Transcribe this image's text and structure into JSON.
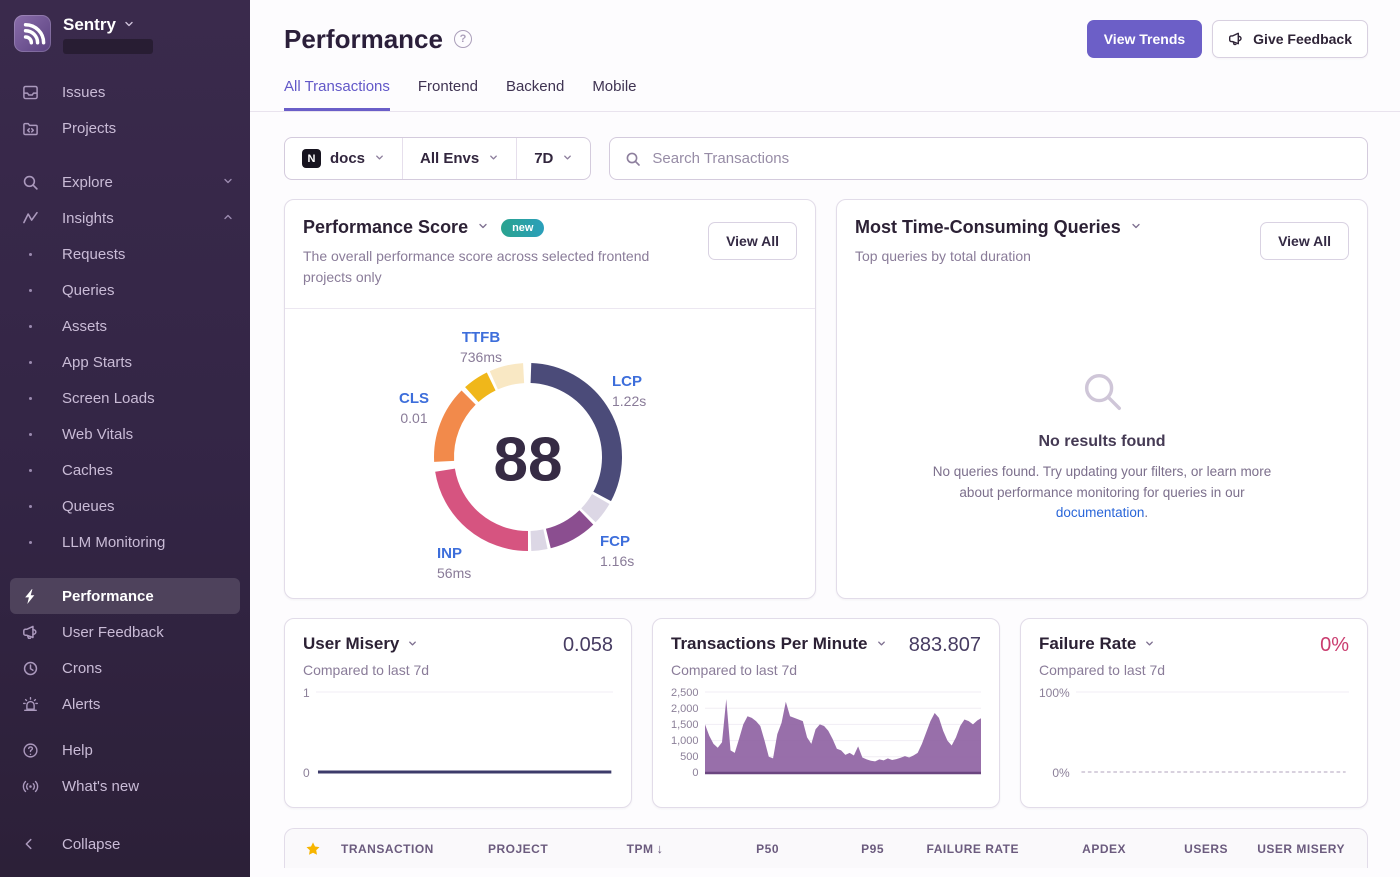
{
  "sidebar": {
    "brand": {
      "name": "Sentry"
    },
    "items": [
      {
        "label": "Issues",
        "icon": "issues"
      },
      {
        "label": "Projects",
        "icon": "projects"
      },
      {
        "label": "Explore",
        "icon": "explore",
        "chevron": "down",
        "gap": true
      },
      {
        "label": "Insights",
        "icon": "insights",
        "chevron": "up"
      },
      {
        "label": "Requests",
        "sub": true
      },
      {
        "label": "Queries",
        "sub": true
      },
      {
        "label": "Assets",
        "sub": true
      },
      {
        "label": "App Starts",
        "sub": true
      },
      {
        "label": "Screen Loads",
        "sub": true
      },
      {
        "label": "Web Vitals",
        "sub": true
      },
      {
        "label": "Caches",
        "sub": true
      },
      {
        "label": "Queues",
        "sub": true
      },
      {
        "label": "LLM Monitoring",
        "sub": true
      },
      {
        "label": "Performance",
        "icon": "performance",
        "active": true,
        "gap": true
      },
      {
        "label": "User Feedback",
        "icon": "feedback"
      },
      {
        "label": "Crons",
        "icon": "crons"
      },
      {
        "label": "Alerts",
        "icon": "alerts"
      },
      {
        "label": "Help",
        "icon": "help",
        "smallgap": true
      },
      {
        "label": "What's new",
        "icon": "broadcast"
      }
    ],
    "collapse_label": "Collapse"
  },
  "header": {
    "title": "Performance",
    "buttons": {
      "view_trends": "View Trends",
      "give_feedback": "Give Feedback"
    }
  },
  "tabs": [
    {
      "label": "All Transactions",
      "active": true
    },
    {
      "label": "Frontend"
    },
    {
      "label": "Backend"
    },
    {
      "label": "Mobile"
    }
  ],
  "filters": {
    "project": "docs",
    "project_platform": "N",
    "environment": "All Envs",
    "date_range": "7D",
    "search_placeholder": "Search Transactions"
  },
  "cards": {
    "performance_score": {
      "title": "Performance Score",
      "badge": "new",
      "description": "The overall performance score across selected frontend projects only",
      "view_all": "View All"
    },
    "queries": {
      "title": "Most Time-Consuming Queries",
      "description": "Top queries by total duration",
      "view_all": "View All",
      "empty": {
        "heading": "No results found",
        "body_before": "No queries found. Try updating your filters, or learn more about performance monitoring for queries in our ",
        "link": "documentation",
        "body_after": "."
      }
    },
    "user_misery": {
      "title": "User Misery",
      "subtitle": "Compared to last 7d",
      "value": "0.058"
    },
    "tpm": {
      "title": "Transactions Per Minute",
      "subtitle": "Compared to last 7d",
      "value": "883.807"
    },
    "failure_rate": {
      "title": "Failure Rate",
      "subtitle": "Compared to last 7d",
      "value": "0%"
    }
  },
  "table": {
    "columns": [
      "TRANSACTION",
      "PROJECT",
      "TPM",
      "P50",
      "P95",
      "FAILURE RATE",
      "APDEX",
      "USERS",
      "USER MISERY"
    ],
    "sort": {
      "column": "TPM",
      "indicator": "↓"
    }
  },
  "chart_data": [
    {
      "type": "donut",
      "title": "Performance Score",
      "score": 88,
      "segments": [
        {
          "metric": "LCP",
          "start": 2,
          "end": 118,
          "color": "#4b4b79"
        },
        {
          "metric": "spacer",
          "start": 120,
          "end": 134,
          "color": "#dcd7e5"
        },
        {
          "metric": "FCP",
          "start": 136,
          "end": 166,
          "color": "#8b4e90"
        },
        {
          "metric": "spacer",
          "start": 168,
          "end": 178,
          "color": "#dcd7e5"
        },
        {
          "metric": "INP",
          "start": 180,
          "end": 261,
          "color": "#d65480"
        },
        {
          "metric": "CLS",
          "start": 267,
          "end": 315,
          "color": "#f28a4b"
        },
        {
          "metric": "TTFB",
          "start": 318,
          "end": 334,
          "color": "#f0b71a"
        },
        {
          "metric": "TTFB",
          "start": 336,
          "end": 357,
          "color": "#f9e8c4"
        }
      ],
      "labels": [
        {
          "metric": "TTFB",
          "value": "736ms"
        },
        {
          "metric": "LCP",
          "value": "1.22s"
        },
        {
          "metric": "CLS",
          "value": "0.01"
        },
        {
          "metric": "INP",
          "value": "56ms"
        },
        {
          "metric": "FCP",
          "value": "1.16s"
        }
      ]
    },
    {
      "type": "line",
      "title": "User Misery",
      "ylim": [
        0,
        1
      ],
      "yticks": [
        "1",
        "0"
      ],
      "line_color": "#3c3b6a",
      "series": [
        {
          "name": "user misery",
          "values": [
            0.058,
            0.058,
            0.058,
            0.058,
            0.058,
            0.058,
            0.058,
            0.058,
            0.058,
            0.058,
            0.058,
            0.058
          ]
        }
      ]
    },
    {
      "type": "area",
      "title": "Transactions Per Minute",
      "ylim": [
        0,
        2500
      ],
      "yticks": [
        "2,500",
        "2,000",
        "1,500",
        "1,000",
        "500",
        "0"
      ],
      "area_color": "#8a5b9e",
      "baseline_color": "#6b4680",
      "series": [
        {
          "name": "tpm",
          "values": [
            1500,
            1150,
            900,
            780,
            950,
            2280,
            700,
            620,
            1050,
            1500,
            1750,
            1700,
            1600,
            1450,
            1000,
            500,
            450,
            1200,
            1550,
            2200,
            1750,
            1700,
            1650,
            1600,
            1100,
            900,
            1350,
            1500,
            1450,
            1300,
            1050,
            750,
            700,
            560,
            620,
            540,
            820,
            480,
            420,
            380,
            360,
            420,
            390,
            450,
            400,
            430,
            470,
            520,
            480,
            540,
            620,
            900,
            1250,
            1600,
            1850,
            1700,
            1300,
            1000,
            850,
            1100,
            1450,
            1650,
            1600,
            1500,
            1620,
            1700
          ]
        }
      ]
    },
    {
      "type": "line",
      "title": "Failure Rate",
      "ylim": [
        0,
        100
      ],
      "yticks": [
        "100%",
        "0%"
      ],
      "line_color": "#d8d1de",
      "line_dashed": true,
      "series": [
        {
          "name": "failure rate",
          "values": [
            0,
            0,
            0,
            0,
            0,
            0,
            0,
            0,
            0,
            0,
            0,
            0
          ]
        }
      ]
    }
  ],
  "colors": {
    "accent": "#6c5fc7",
    "sidebar_bg": "#352749",
    "link_blue": "#2a66d9",
    "vital_label_blue": "#3d6edb",
    "failure_pink": "#ca3c6f",
    "badge_teal": "#2aa38e",
    "star_gold": "#f7b500",
    "lcp": "#4b4b79",
    "fcp": "#8b4e90",
    "inp": "#d65480",
    "cls": "#f28a4b",
    "ttfb": "#f0b71a"
  }
}
